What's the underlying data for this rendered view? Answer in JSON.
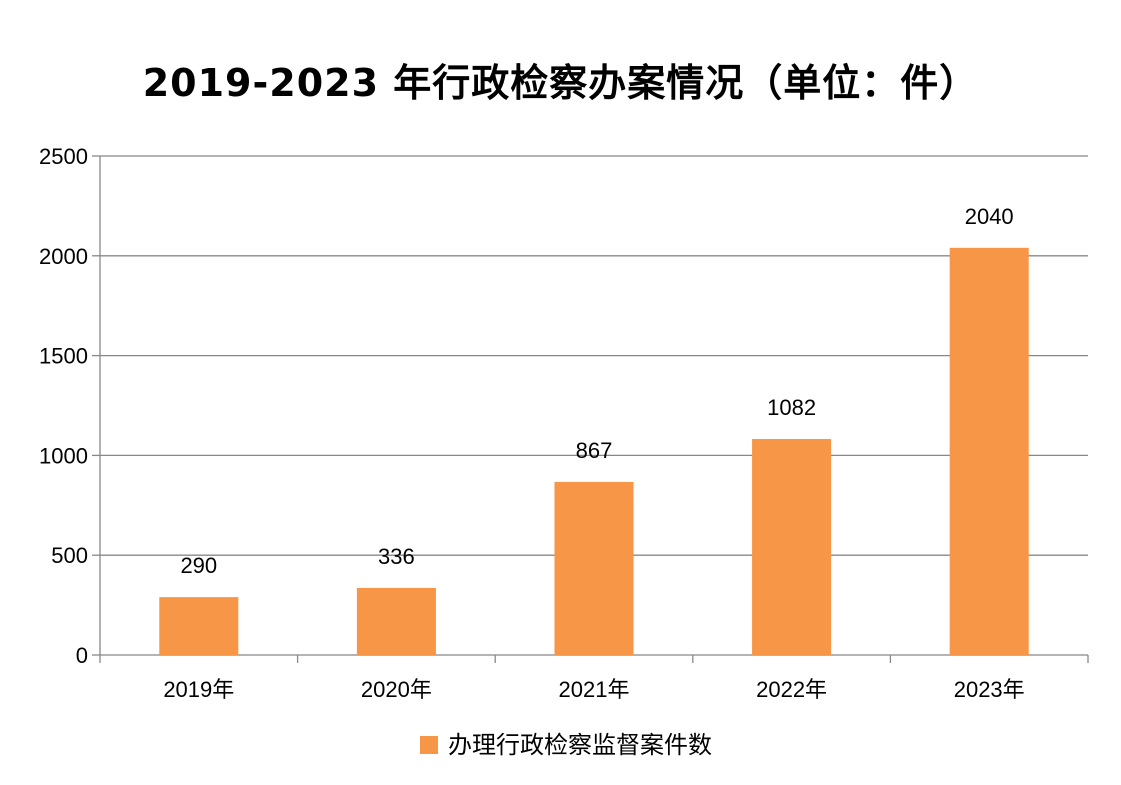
{
  "chart_data": {
    "type": "bar",
    "title": "2019-2023 年行政检察办案情况（单位：件）",
    "categories": [
      "2019年",
      "2020年",
      "2021年",
      "2022年",
      "2023年"
    ],
    "series": [
      {
        "name": "办理行政检察监督案件数",
        "values": [
          290,
          336,
          867,
          1082,
          2040
        ],
        "color": "#F79646"
      }
    ],
    "ylim": [
      0,
      2500
    ],
    "yticks": [
      0,
      500,
      1000,
      1500,
      2000,
      2500
    ],
    "grid": true,
    "legend": "bottom",
    "data_labels": true
  }
}
